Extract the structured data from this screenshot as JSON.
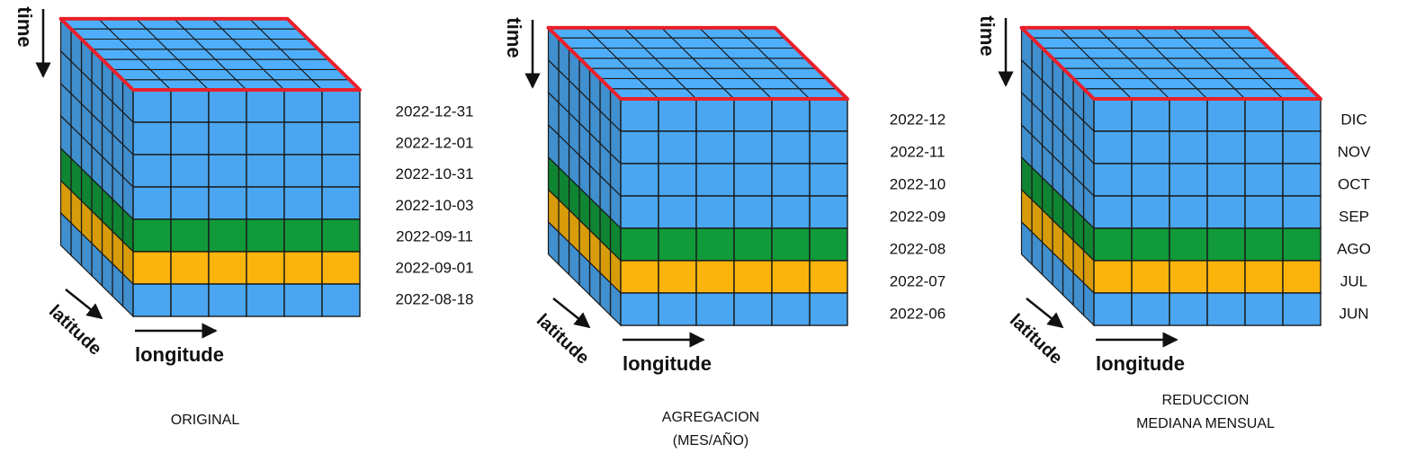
{
  "colors": {
    "blue": "#4aa6f0",
    "green": "#119a3a",
    "yellow": "#fbb40b",
    "outline": "#1a1a1a",
    "top_border": "#e8202a"
  },
  "axes": {
    "time": "time",
    "latitude": "latitude",
    "longitude": "longitude"
  },
  "cubes": [
    {
      "caption": [
        "ORIGINAL"
      ],
      "slices": [
        {
          "label": "2022-12-31",
          "color": "blue"
        },
        {
          "label": "2022-12-01",
          "color": "blue"
        },
        {
          "label": "2022-10-31",
          "color": "blue"
        },
        {
          "label": "2022-10-03",
          "color": "blue"
        },
        {
          "label": "2022-09-11",
          "color": "green"
        },
        {
          "label": "2022-09-01",
          "color": "yellow"
        },
        {
          "label": "2022-08-18",
          "color": "blue"
        }
      ]
    },
    {
      "caption": [
        "AGREGACION",
        "(MES/AÑO)"
      ],
      "slices": [
        {
          "label": "2022-12",
          "color": "blue"
        },
        {
          "label": "2022-11",
          "color": "blue"
        },
        {
          "label": "2022-10",
          "color": "blue"
        },
        {
          "label": "2022-09",
          "color": "blue"
        },
        {
          "label": "2022-08",
          "color": "green"
        },
        {
          "label": "2022-07",
          "color": "yellow"
        },
        {
          "label": "2022-06",
          "color": "blue"
        }
      ]
    },
    {
      "caption": [
        "REDUCCION",
        "MEDIANA MENSUAL"
      ],
      "slices": [
        {
          "label": "DIC",
          "color": "blue"
        },
        {
          "label": "NOV",
          "color": "blue"
        },
        {
          "label": "OCT",
          "color": "blue"
        },
        {
          "label": "SEP",
          "color": "blue"
        },
        {
          "label": "AGO",
          "color": "green"
        },
        {
          "label": "JUL",
          "color": "yellow"
        },
        {
          "label": "JUN",
          "color": "blue"
        }
      ]
    }
  ]
}
